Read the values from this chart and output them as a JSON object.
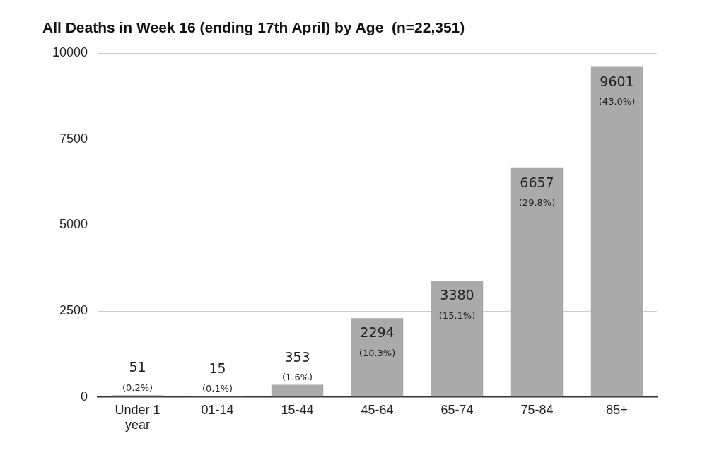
{
  "chart_data": {
    "type": "bar",
    "title": "All Deaths in Week 16 (ending 17th April) by Age  (n=22,351)",
    "categories": [
      "Under 1 year",
      "01-14",
      "15-44",
      "45-64",
      "65-74",
      "75-84",
      "85+"
    ],
    "values": [
      51,
      15,
      353,
      2294,
      3380,
      6657,
      9601
    ],
    "color": "#aaaaaa",
    "value_labels": [
      "51\n(0.2%)",
      "15\n(0.1%)",
      "353\n(1.6%)",
      "2294\n(10.3%)",
      "3380\n(15.1%)",
      "6657\n(29.8%)",
      "9601\n(43.0%)"
    ],
    "ylim": [
      0,
      10000
    ],
    "yticks": [
      0,
      2500,
      5000,
      7500,
      10000
    ],
    "grid": "y",
    "legend": false
  }
}
